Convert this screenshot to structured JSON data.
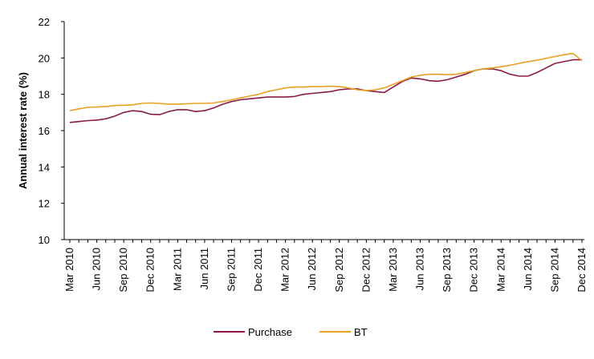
{
  "chart_data": {
    "type": "line",
    "title": "",
    "xlabel": "",
    "ylabel": "Annual interest rate (%)",
    "ylim": [
      10,
      22
    ],
    "yticks": [
      "10",
      "12",
      "14",
      "16",
      "18",
      "20",
      "22"
    ],
    "x_tick_labels": [
      "Mar 2010",
      "Jun 2010",
      "Sep 2010",
      "Dec 2010",
      "Mar 2011",
      "Jun 2011",
      "Sep 2011",
      "Dec 2011",
      "Mar 2012",
      "Jun 2012",
      "Sep 2012",
      "Dec 2012",
      "Mar 2013",
      "Jun 2013",
      "Sep 2013",
      "Dec 2013",
      "Mar 2014",
      "Jun 2014",
      "Sep 2014",
      "Dec 2014"
    ],
    "grid": false,
    "legend_position": "bottom",
    "x": [
      "Mar 2010",
      "Apr 2010",
      "May 2010",
      "Jun 2010",
      "Jul 2010",
      "Aug 2010",
      "Sep 2010",
      "Oct 2010",
      "Nov 2010",
      "Dec 2010",
      "Jan 2011",
      "Feb 2011",
      "Mar 2011",
      "Apr 2011",
      "May 2011",
      "Jun 2011",
      "Jul 2011",
      "Aug 2011",
      "Sep 2011",
      "Oct 2011",
      "Nov 2011",
      "Dec 2011",
      "Jan 2012",
      "Feb 2012",
      "Mar 2012",
      "Apr 2012",
      "May 2012",
      "Jun 2012",
      "Jul 2012",
      "Aug 2012",
      "Sep 2012",
      "Oct 2012",
      "Nov 2012",
      "Dec 2012",
      "Jan 2013",
      "Feb 2013",
      "Mar 2013",
      "Apr 2013",
      "May 2013",
      "Jun 2013",
      "Jul 2013",
      "Aug 2013",
      "Sep 2013",
      "Oct 2013",
      "Nov 2013",
      "Dec 2013",
      "Jan 2014",
      "Feb 2014",
      "Mar 2014",
      "Apr 2014",
      "May 2014",
      "Jun 2014",
      "Jul 2014",
      "Aug 2014",
      "Sep 2014",
      "Oct 2014",
      "Nov 2014",
      "Dec 2014"
    ],
    "series": [
      {
        "name": "Purchase",
        "color": "#8B1A4A",
        "values": [
          16.45,
          16.5,
          16.55,
          16.58,
          16.65,
          16.8,
          17.0,
          17.1,
          17.05,
          16.9,
          16.88,
          17.05,
          17.15,
          17.15,
          17.05,
          17.1,
          17.25,
          17.45,
          17.6,
          17.7,
          17.75,
          17.8,
          17.85,
          17.85,
          17.85,
          17.88,
          18.0,
          18.05,
          18.1,
          18.15,
          18.25,
          18.3,
          18.3,
          18.2,
          18.15,
          18.1,
          18.4,
          18.7,
          18.9,
          18.85,
          18.75,
          18.72,
          18.8,
          18.95,
          19.1,
          19.3,
          19.4,
          19.4,
          19.3,
          19.1,
          19.0,
          19.0,
          19.2,
          19.45,
          19.7,
          19.8,
          19.9,
          19.9
        ]
      },
      {
        "name": "BT",
        "color": "#E8A020",
        "values": [
          17.1,
          17.2,
          17.28,
          17.3,
          17.33,
          17.38,
          17.4,
          17.42,
          17.5,
          17.52,
          17.5,
          17.45,
          17.45,
          17.48,
          17.5,
          17.5,
          17.52,
          17.6,
          17.7,
          17.8,
          17.9,
          18.0,
          18.15,
          18.25,
          18.35,
          18.4,
          18.4,
          18.42,
          18.42,
          18.45,
          18.42,
          18.35,
          18.25,
          18.2,
          18.25,
          18.35,
          18.55,
          18.75,
          18.95,
          19.05,
          19.1,
          19.1,
          19.08,
          19.1,
          19.2,
          19.3,
          19.4,
          19.45,
          19.52,
          19.6,
          19.7,
          19.8,
          19.88,
          19.98,
          20.08,
          20.18,
          20.25,
          19.85
        ]
      }
    ]
  },
  "legend": {
    "purchase_label": "Purchase",
    "bt_label": "BT"
  }
}
